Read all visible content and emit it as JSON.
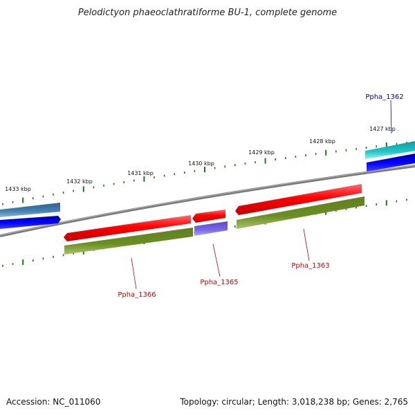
{
  "title": "Pelodictyon phaeoclathratiforme BU-1, complete genome",
  "footer": {
    "accession": "Accession: NC_011060",
    "topology": "Topology: circular; Length: 3,018,238 bp; Genes: 2,765"
  },
  "colors": {
    "backbone": "#808080",
    "tick": "#1a7a1a",
    "forward_gene": "#ff0000",
    "reverse_gene": "#6b8e23",
    "blue_gene": "#0000ee",
    "steel_gene": "#4682b4",
    "cyan_gene": "#20c0c0",
    "purple_gene": "#6a5acd",
    "label_red": "#cc0000",
    "label_blue": "#0000aa"
  },
  "scale": {
    "labels": [
      "1433 kbp",
      "1432 kbp",
      "1431 kbp",
      "1430 kbp",
      "1429 kbp",
      "1428 kbp",
      "1427 kbp"
    ]
  },
  "gene_labels": [
    {
      "name": "Ppha_1362",
      "color": "label_blue"
    },
    {
      "name": "Ppha_1363",
      "color": "label_red"
    },
    {
      "name": "Ppha_1365",
      "color": "label_red"
    },
    {
      "name": "Ppha_1366",
      "color": "label_red"
    }
  ]
}
